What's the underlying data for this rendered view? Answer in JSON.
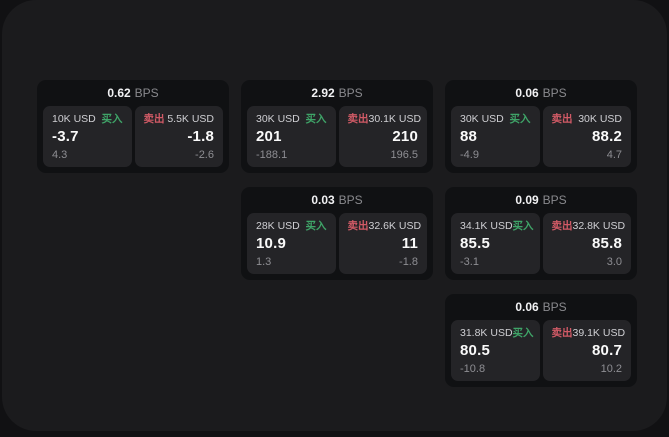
{
  "labels": {
    "bps_unit": "BPS",
    "buy": "买入",
    "sell": "卖出"
  },
  "colors": {
    "buy_accent": "#3fa468",
    "sell_accent": "#d15a66",
    "panel_bg": "#242427",
    "card_bg": "#101113",
    "page_bg": "#1b1b1d",
    "outer_bg": "#111113"
  },
  "cards": [
    {
      "bps": "0.62",
      "buy": {
        "size": "10K USD",
        "price": "-3.7",
        "delta": "4.3"
      },
      "sell": {
        "size": "5.5K USD",
        "price": "-1.8",
        "delta": "-2.6"
      }
    },
    {
      "bps": "2.92",
      "buy": {
        "size": "30K USD",
        "price": "201",
        "delta": "-188.1"
      },
      "sell": {
        "size": "30.1K USD",
        "price": "210",
        "delta": "196.5"
      }
    },
    {
      "bps": "0.06",
      "buy": {
        "size": "30K USD",
        "price": "88",
        "delta": "-4.9"
      },
      "sell": {
        "size": "30K USD",
        "price": "88.2",
        "delta": "4.7"
      }
    },
    {
      "bps": "0.03",
      "buy": {
        "size": "28K USD",
        "price": "10.9",
        "delta": "1.3"
      },
      "sell": {
        "size": "32.6K USD",
        "price": "11",
        "delta": "-1.8"
      }
    },
    {
      "bps": "0.09",
      "buy": {
        "size": "34.1K USD",
        "price": "85.5",
        "delta": "-3.1"
      },
      "sell": {
        "size": "32.8K USD",
        "price": "85.8",
        "delta": "3.0"
      }
    },
    {
      "bps": "0.06",
      "buy": {
        "size": "31.8K USD",
        "price": "80.5",
        "delta": "-10.8"
      },
      "sell": {
        "size": "39.1K USD",
        "price": "80.7",
        "delta": "10.2"
      }
    }
  ]
}
